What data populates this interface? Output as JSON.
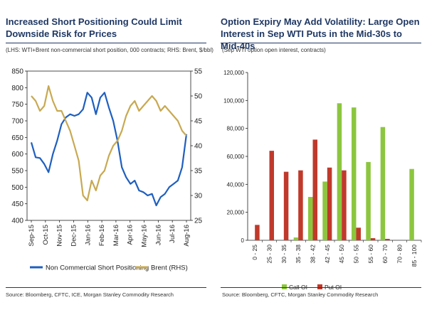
{
  "left": {
    "title": "Increased Short Positioning Could Limit Downside Risk for Prices",
    "subtitle": "(LHS: WTI+Brent non-commercial short position, 000 contracts; RHS: Brent, $/bbl)",
    "source": "Source: Bloomberg, CFTC, ICE, Morgan Stanley Commodity Research",
    "colors": {
      "short": "#1f5fbf",
      "brent": "#c8a951"
    }
  },
  "right": {
    "title": "Option Expiry May Add Volatility: Large Open Interest in Sep WTI Puts in the Mid-30s to Mid-40s",
    "subtitle": "(Sep WTI option open interest, contracts)",
    "source": "Source: Bloomberg, CFTC, Morgan Stanley Commodity Research",
    "colors": {
      "call": "#8cc63f",
      "put": "#c0392b"
    }
  },
  "chart_data": [
    {
      "type": "line",
      "title": "Increased Short Positioning Could Limit Downside Risk for Prices",
      "subtitle": "(LHS: WTI+Brent non-commercial short position, 000 contracts; RHS: Brent, $/bbl)",
      "x_ticks": [
        "Sep-15",
        "Oct-15",
        "Nov-15",
        "Dec-15",
        "Jan-16",
        "Feb-16",
        "Mar-16",
        "Apr-16",
        "May-16",
        "Jun-16",
        "Jul-16",
        "Aug-16"
      ],
      "ylim_left": [
        400,
        850
      ],
      "y_ticks_left": [
        "400",
        "450",
        "500",
        "550",
        "600",
        "650",
        "700",
        "750",
        "800",
        "850"
      ],
      "ylim_right": [
        25,
        55
      ],
      "y_ticks_right": [
        "25",
        "30",
        "35",
        "40",
        "45",
        "50",
        "55"
      ],
      "grid": false,
      "legend_position": "bottom",
      "series": [
        {
          "name": "Non Commercial Short Positioning",
          "axis": "left",
          "values": [
            635,
            590,
            588,
            570,
            545,
            600,
            640,
            690,
            710,
            720,
            715,
            720,
            735,
            785,
            770,
            720,
            770,
            785,
            740,
            700,
            640,
            560,
            530,
            510,
            520,
            490,
            485,
            475,
            480,
            445,
            470,
            480,
            500,
            510,
            520,
            560,
            660
          ]
        },
        {
          "name": "Brent (RHS)",
          "axis": "right",
          "values": [
            50,
            49,
            47,
            48,
            52,
            49,
            47,
            47,
            45,
            43,
            40,
            37,
            30,
            29,
            33,
            31,
            34,
            35,
            38,
            40,
            41,
            43,
            46,
            48,
            49,
            47,
            48,
            49,
            50,
            49,
            47,
            48,
            47,
            46,
            45,
            43,
            42
          ]
        }
      ]
    },
    {
      "type": "bar",
      "title": "Option Expiry May Add Volatility: Large Open Interest in Sep WTI Puts in the Mid-30s to Mid-40s",
      "subtitle": "(Sep WTI option open interest, contracts)",
      "categories": [
        "0 - 25",
        "25 - 30",
        "30 - 35",
        "35 - 38",
        "38 - 42",
        "42 - 45",
        "45 - 50",
        "50 - 55",
        "55 - 60",
        "60 - 70",
        "70 - 80",
        "85 - 100"
      ],
      "ylim": [
        0,
        120000
      ],
      "y_ticks": [
        "0",
        "20,000",
        "40,000",
        "60,000",
        "80,000",
        "100,000",
        "120,000"
      ],
      "legend_position": "bottom",
      "series": [
        {
          "name": "Call OI",
          "values": [
            0,
            0,
            0,
            2000,
            31000,
            42000,
            98000,
            95000,
            56000,
            81000,
            0,
            51000
          ]
        },
        {
          "name": "Put OI",
          "values": [
            11000,
            64000,
            49000,
            50000,
            72000,
            52000,
            50000,
            9000,
            1500,
            1000,
            0,
            0
          ]
        }
      ]
    }
  ]
}
